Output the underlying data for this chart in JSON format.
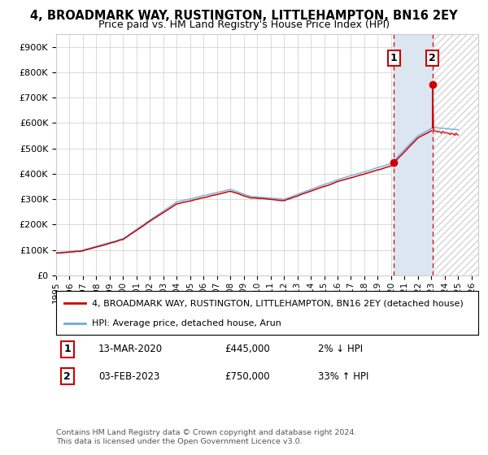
{
  "title": "4, BROADMARK WAY, RUSTINGTON, LITTLEHAMPTON, BN16 2EY",
  "subtitle": "Price paid vs. HM Land Registry's House Price Index (HPI)",
  "legend_line1": "4, BROADMARK WAY, RUSTINGTON, LITTLEHAMPTON, BN16 2EY (detached house)",
  "legend_line2": "HPI: Average price, detached house, Arun",
  "annotation1_label": "1",
  "annotation1_date": "13-MAR-2020",
  "annotation1_price": "£445,000",
  "annotation1_hpi": "2% ↓ HPI",
  "annotation2_label": "2",
  "annotation2_date": "03-FEB-2023",
  "annotation2_price": "£750,000",
  "annotation2_hpi": "33% ↑ HPI",
  "footnote": "Contains HM Land Registry data © Crown copyright and database right 2024.\nThis data is licensed under the Open Government Licence v3.0.",
  "sale1_year": 2020.2,
  "sale1_value": 445000,
  "sale2_year": 2023.08,
  "sale2_value": 750000,
  "hpi_color": "#6baed6",
  "price_color": "#cc0000",
  "sale_marker_color": "#cc0000",
  "shaded_color": "#dce6f1",
  "background_color": "#ffffff",
  "ylim": [
    0,
    950000
  ],
  "xlim_start": 1995,
  "xlim_end": 2026.5
}
